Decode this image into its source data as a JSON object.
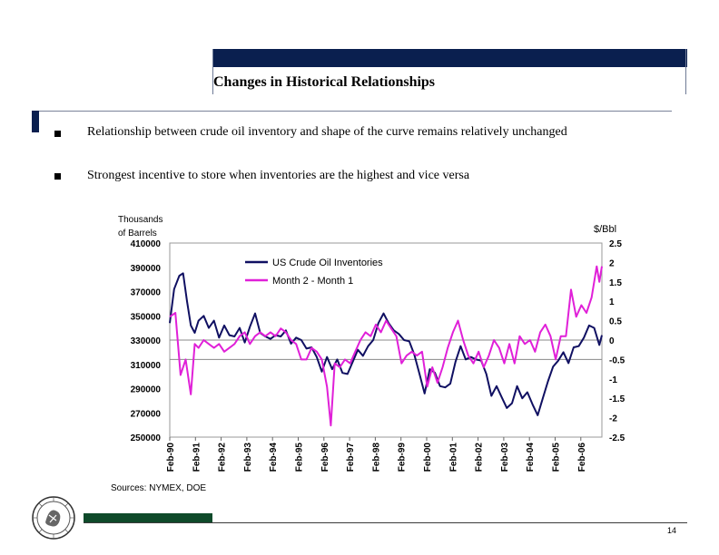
{
  "title": "Changes in Historical Relationships",
  "bullets": [
    "Relationship between crude oil inventory and shape of the curve remains relatively unchanged",
    "Strongest incentive to store when inventories are the highest and vice versa"
  ],
  "page_number": "14",
  "colors": {
    "navy": "#0a1f4f",
    "inventory_line": "#101062",
    "spread_line": "#e020d8",
    "footer_green": "#0f4a2a"
  },
  "chart_data": {
    "type": "line",
    "left_axis_title": [
      "Thousands",
      "of Barrels"
    ],
    "right_axis_title": "$/Bbl",
    "left_ylim": [
      250000,
      410000
    ],
    "left_ticks": [
      "410000",
      "390000",
      "370000",
      "350000",
      "330000",
      "310000",
      "290000",
      "270000",
      "250000"
    ],
    "right_ylim": [
      -2.5,
      2.5
    ],
    "right_ticks": [
      "2.5",
      "2",
      "1.5",
      "1",
      "0.5",
      "0",
      "-0.5",
      "-1",
      "-1.5",
      "-2",
      "-2.5"
    ],
    "x_range": [
      1990.08,
      2006.9
    ],
    "x_ticks": [
      {
        "label": "Feb-90",
        "x": 1990.08
      },
      {
        "label": "Feb-91",
        "x": 1991.08
      },
      {
        "label": "Feb-92",
        "x": 1992.08
      },
      {
        "label": "Feb-93",
        "x": 1993.08
      },
      {
        "label": "Feb-94",
        "x": 1994.08
      },
      {
        "label": "Feb-95",
        "x": 1995.08
      },
      {
        "label": "Feb-96",
        "x": 1996.08
      },
      {
        "label": "Feb-97",
        "x": 1997.08
      },
      {
        "label": "Feb-98",
        "x": 1998.08
      },
      {
        "label": "Feb-99",
        "x": 1999.08
      },
      {
        "label": "Feb-00",
        "x": 2000.08
      },
      {
        "label": "Feb-01",
        "x": 2001.08
      },
      {
        "label": "Feb-02",
        "x": 2002.08
      },
      {
        "label": "Feb-03",
        "x": 2003.08
      },
      {
        "label": "Feb-04",
        "x": 2004.08
      },
      {
        "label": "Feb-05",
        "x": 2005.08
      },
      {
        "label": "Feb-06",
        "x": 2006.08
      }
    ],
    "reference_lines": [
      {
        "axis": "right",
        "value": 0
      },
      {
        "axis": "right",
        "value": -0.5
      }
    ],
    "legend": {
      "placement": "top-left",
      "entries": [
        "US Crude Oil Inventories",
        "Month 2 - Month 1"
      ]
    },
    "source": "Sources: NYMEX, DOE",
    "series": [
      {
        "name": "US Crude Oil Inventories",
        "axis": "left",
        "color": "#101062",
        "x": [
          1990.08,
          1990.25,
          1990.45,
          1990.6,
          1990.75,
          1990.9,
          1991.05,
          1991.2,
          1991.4,
          1991.6,
          1991.8,
          1992.0,
          1992.2,
          1992.4,
          1992.6,
          1992.8,
          1993.0,
          1993.2,
          1993.4,
          1993.6,
          1993.8,
          1994.0,
          1994.2,
          1994.4,
          1994.6,
          1994.8,
          1995.0,
          1995.2,
          1995.4,
          1995.6,
          1995.8,
          1996.0,
          1996.2,
          1996.4,
          1996.6,
          1996.8,
          1997.0,
          1997.2,
          1997.4,
          1997.6,
          1997.8,
          1998.0,
          1998.2,
          1998.4,
          1998.6,
          1998.8,
          1999.0,
          1999.2,
          1999.4,
          1999.6,
          1999.8,
          2000.0,
          2000.2,
          2000.4,
          2000.6,
          2000.8,
          2001.0,
          2001.2,
          2001.4,
          2001.6,
          2001.8,
          2002.0,
          2002.2,
          2002.4,
          2002.6,
          2002.8,
          2003.0,
          2003.2,
          2003.4,
          2003.6,
          2003.8,
          2004.0,
          2004.2,
          2004.4,
          2004.6,
          2004.8,
          2005.0,
          2005.2,
          2005.4,
          2005.6,
          2005.8,
          2006.0,
          2006.2,
          2006.4,
          2006.6,
          2006.8,
          2006.9
        ],
        "values": [
          344000,
          372000,
          383000,
          385000,
          362000,
          342000,
          336000,
          346000,
          350000,
          340000,
          346000,
          332000,
          342000,
          334000,
          333000,
          340000,
          328000,
          341000,
          352000,
          336000,
          333000,
          331000,
          334000,
          333000,
          338000,
          327000,
          332000,
          330000,
          323000,
          324000,
          316000,
          304000,
          316000,
          306000,
          314000,
          303000,
          302000,
          312000,
          322000,
          317000,
          325000,
          330000,
          344000,
          352000,
          344000,
          338000,
          335000,
          330000,
          329000,
          318000,
          302000,
          286000,
          306000,
          303000,
          292000,
          291000,
          294000,
          312000,
          325000,
          314000,
          316000,
          314000,
          313000,
          302000,
          284000,
          292000,
          283000,
          274000,
          278000,
          292000,
          282000,
          287000,
          277000,
          268000,
          282000,
          296000,
          308000,
          313000,
          320000,
          311000,
          324000,
          325000,
          332000,
          342000,
          340000,
          326000,
          334000
        ]
      },
      {
        "name": "Month 2 - Month 1",
        "axis": "right",
        "color": "#e020d8",
        "x": [
          1990.08,
          1990.3,
          1990.5,
          1990.7,
          1990.9,
          1991.05,
          1991.2,
          1991.4,
          1991.6,
          1991.8,
          1992.0,
          1992.2,
          1992.4,
          1992.6,
          1992.8,
          1993.0,
          1993.2,
          1993.4,
          1993.6,
          1993.8,
          1994.0,
          1994.2,
          1994.4,
          1994.6,
          1994.8,
          1995.0,
          1995.2,
          1995.4,
          1995.6,
          1995.8,
          1996.0,
          1996.2,
          1996.35,
          1996.5,
          1996.7,
          1996.9,
          1997.1,
          1997.3,
          1997.5,
          1997.7,
          1997.9,
          1998.1,
          1998.3,
          1998.5,
          1998.7,
          1998.9,
          1999.1,
          1999.3,
          1999.5,
          1999.7,
          1999.9,
          2000.1,
          2000.3,
          2000.5,
          2000.7,
          2000.9,
          2001.1,
          2001.3,
          2001.5,
          2001.7,
          2001.9,
          2002.1,
          2002.3,
          2002.5,
          2002.7,
          2002.9,
          2003.1,
          2003.3,
          2003.5,
          2003.7,
          2003.9,
          2004.1,
          2004.3,
          2004.5,
          2004.7,
          2004.9,
          2005.1,
          2005.3,
          2005.5,
          2005.7,
          2005.9,
          2006.1,
          2006.3,
          2006.5,
          2006.7,
          2006.8,
          2006.9
        ],
        "values": [
          0.6,
          0.7,
          -0.9,
          -0.5,
          -1.4,
          -0.1,
          -0.2,
          0.0,
          -0.1,
          -0.2,
          -0.1,
          -0.3,
          -0.2,
          -0.1,
          0.1,
          0.2,
          -0.1,
          0.1,
          0.2,
          0.1,
          0.2,
          0.1,
          0.3,
          0.2,
          0.0,
          -0.1,
          -0.5,
          -0.5,
          -0.2,
          -0.3,
          -0.5,
          -1.2,
          -2.2,
          -0.6,
          -0.7,
          -0.5,
          -0.6,
          -0.3,
          0.0,
          0.2,
          0.1,
          0.4,
          0.2,
          0.5,
          0.3,
          0.1,
          -0.6,
          -0.4,
          -0.3,
          -0.4,
          -0.3,
          -1.2,
          -0.7,
          -1.1,
          -0.7,
          -0.2,
          0.2,
          0.5,
          0.0,
          -0.4,
          -0.6,
          -0.3,
          -0.7,
          -0.4,
          0.0,
          -0.2,
          -0.6,
          -0.1,
          -0.6,
          0.1,
          -0.1,
          0.0,
          -0.3,
          0.2,
          0.4,
          0.1,
          -0.5,
          0.1,
          0.1,
          1.3,
          0.6,
          0.9,
          0.7,
          1.1,
          1.9,
          1.5,
          1.9
        ]
      }
    ]
  }
}
